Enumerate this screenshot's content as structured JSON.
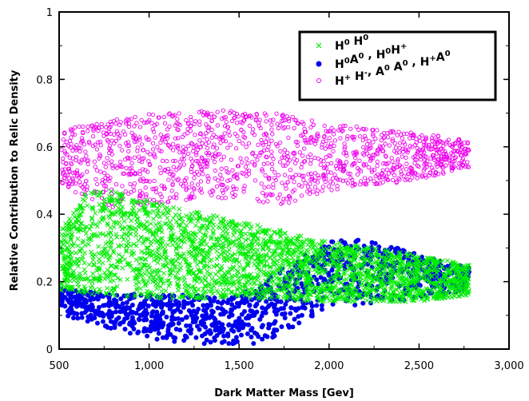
{
  "chart_data": {
    "type": "scatter",
    "title": "",
    "xlabel": "Dark Matter Mass [Gev]",
    "ylabel": "Relative Contribution to Relic Density",
    "xlim": [
      500,
      3000
    ],
    "ylim": [
      0,
      1
    ],
    "xticks": [
      500,
      1000,
      1500,
      2000,
      2500,
      3000
    ],
    "xtick_labels": [
      "500",
      "1,000",
      "1,500",
      "2,000",
      "2,500",
      "3,000"
    ],
    "yticks": [
      0,
      0.2,
      0.4,
      0.6,
      0.8,
      1
    ],
    "ytick_labels": [
      "0",
      "0.2",
      "0.4",
      "0.6",
      "0.8",
      "1"
    ],
    "grid": false,
    "legend_position": "top-right",
    "series": [
      {
        "name": "H0H0",
        "legend_parts": [
          [
            "H",
            "0"
          ],
          [
            " H",
            "0"
          ]
        ],
        "color": "#00ee00",
        "marker": "x",
        "x_range": [
          510,
          2780
        ],
        "band_low": [
          [
            520,
            0.17
          ],
          [
            700,
            0.16
          ],
          [
            1000,
            0.15
          ],
          [
            1500,
            0.15
          ],
          [
            2000,
            0.14
          ],
          [
            2500,
            0.14
          ],
          [
            2780,
            0.16
          ]
        ],
        "band_high": [
          [
            520,
            0.36
          ],
          [
            650,
            0.47
          ],
          [
            800,
            0.47
          ],
          [
            1000,
            0.44
          ],
          [
            1500,
            0.38
          ],
          [
            2000,
            0.32
          ],
          [
            2500,
            0.28
          ],
          [
            2780,
            0.25
          ]
        ]
      },
      {
        "name": "H0A0, H0H+",
        "legend_parts": [
          [
            "H",
            "0"
          ],
          [
            "A",
            "0"
          ],
          [
            " , H",
            "0"
          ],
          [
            "H",
            "+"
          ]
        ],
        "color": "#0000ee",
        "marker": "o-filled",
        "x_range": [
          510,
          2780
        ],
        "band_low": [
          [
            520,
            0.1
          ],
          [
            700,
            0.07
          ],
          [
            1000,
            0.03
          ],
          [
            1300,
            0.01
          ],
          [
            1600,
            0.01
          ],
          [
            1800,
            0.06
          ],
          [
            2000,
            0.12
          ],
          [
            2500,
            0.15
          ],
          [
            2780,
            0.17
          ]
        ],
        "band_high": [
          [
            520,
            0.18
          ],
          [
            700,
            0.17
          ],
          [
            1000,
            0.16
          ],
          [
            1500,
            0.16
          ],
          [
            1800,
            0.26
          ],
          [
            2000,
            0.32
          ],
          [
            2200,
            0.33
          ],
          [
            2500,
            0.28
          ],
          [
            2780,
            0.24
          ]
        ]
      },
      {
        "name": "H+H-, A0A0, H+A0",
        "legend_parts": [
          [
            "H",
            "+"
          ],
          [
            " H",
            "-"
          ],
          [
            ", A",
            "0"
          ],
          [
            " A",
            "0"
          ],
          [
            " , H",
            "+"
          ],
          [
            "A",
            "0"
          ]
        ],
        "color": "#ee00ee",
        "marker": "o-open",
        "x_range": [
          510,
          2780
        ],
        "band_low": [
          [
            520,
            0.48
          ],
          [
            800,
            0.42
          ],
          [
            1000,
            0.43
          ],
          [
            1200,
            0.44
          ],
          [
            1500,
            0.45
          ],
          [
            1700,
            0.42
          ],
          [
            2000,
            0.47
          ],
          [
            2500,
            0.5
          ],
          [
            2780,
            0.54
          ]
        ],
        "band_high": [
          [
            520,
            0.65
          ],
          [
            700,
            0.67
          ],
          [
            1000,
            0.7
          ],
          [
            1500,
            0.71
          ],
          [
            1700,
            0.7
          ],
          [
            2000,
            0.67
          ],
          [
            2500,
            0.64
          ],
          [
            2780,
            0.62
          ]
        ]
      }
    ]
  }
}
